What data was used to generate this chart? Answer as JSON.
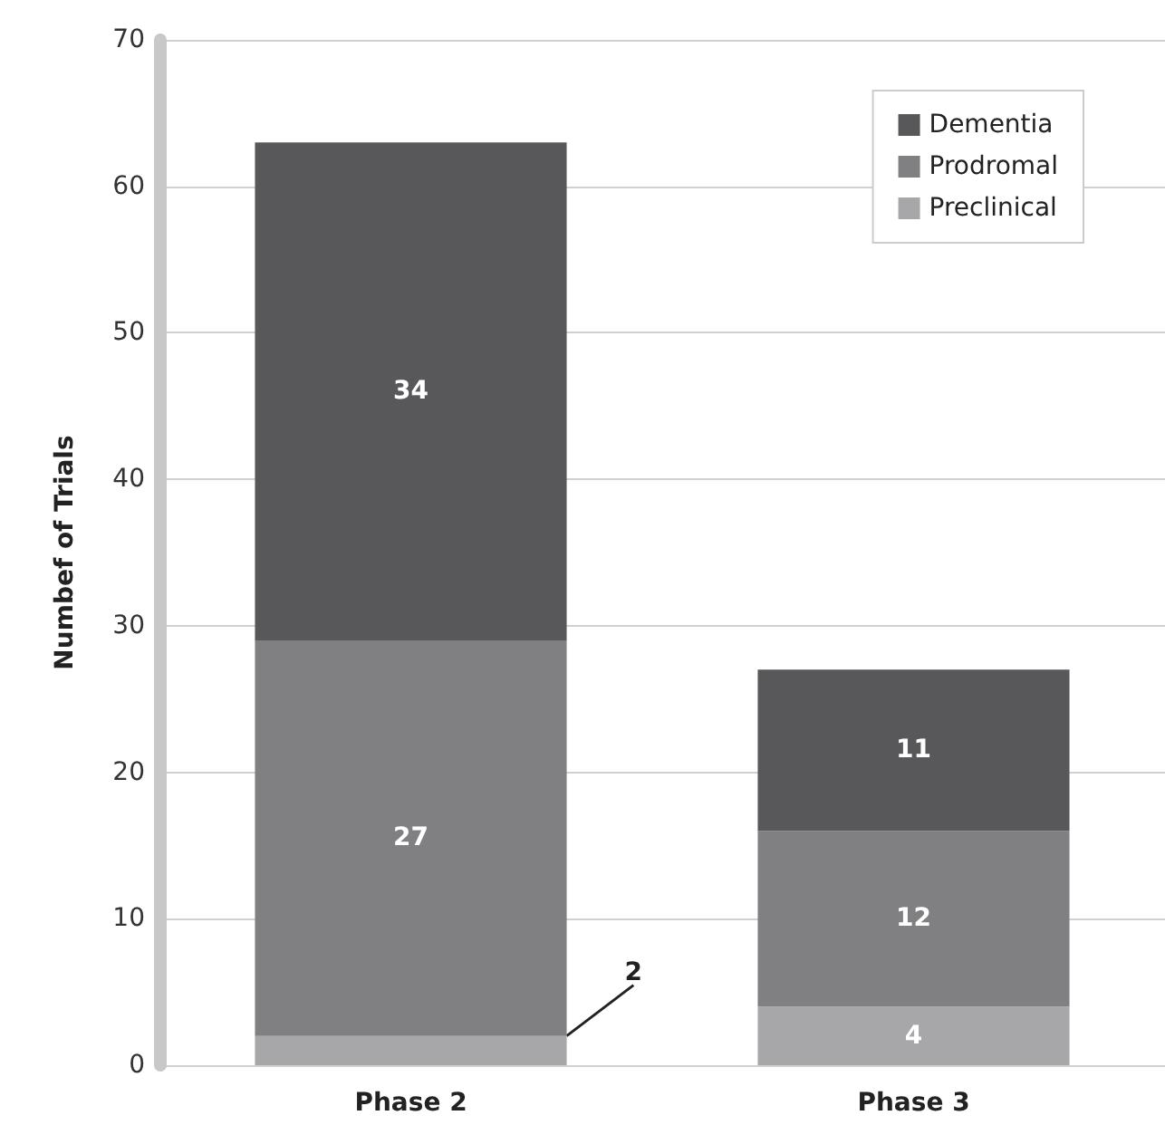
{
  "chart_data": {
    "type": "bar",
    "stacked": true,
    "categories": [
      "Phase 2",
      "Phase 3"
    ],
    "ylabel": "Numbef of Trials",
    "ylim": [
      0,
      70
    ],
    "yticks": [
      0,
      10,
      20,
      30,
      40,
      50,
      60,
      70
    ],
    "grid": "y",
    "legend": "top right",
    "data_labels": true,
    "series": [
      {
        "name": "Preclinical",
        "color": "#a7a7a9",
        "values": [
          2,
          4
        ]
      },
      {
        "name": "Prodromal",
        "color": "#808082",
        "values": [
          27,
          12
        ]
      },
      {
        "name": "Dementia",
        "color": "#58585a",
        "values": [
          34,
          11
        ]
      }
    ]
  }
}
